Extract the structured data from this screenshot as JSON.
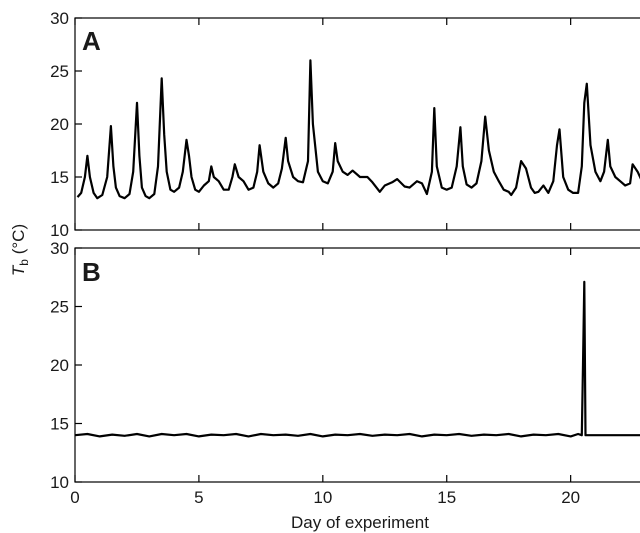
{
  "chart_data": [
    {
      "type": "line",
      "panel_label": "A",
      "ylabel_symbol": "T",
      "ylabel_subscript": "b",
      "ylabel_unit": " (°C)",
      "xlim": [
        0,
        23
      ],
      "ylim": [
        10,
        30
      ],
      "yticks": [
        10,
        15,
        20,
        25,
        30
      ],
      "xticks": [
        0,
        5,
        10,
        15,
        20
      ],
      "grid": false,
      "color": "#000000",
      "series": [
        {
          "x": [
            0.1,
            0.25,
            0.4,
            0.5,
            0.6,
            0.75,
            0.9,
            1.1,
            1.3,
            1.45,
            1.55,
            1.65,
            1.8,
            2.0,
            2.2,
            2.35,
            2.5,
            2.6,
            2.7,
            2.85,
            3.0,
            3.2,
            3.35,
            3.5,
            3.6,
            3.7,
            3.85,
            4.0,
            4.2,
            4.35,
            4.5,
            4.6,
            4.7,
            4.85,
            5.0,
            5.2,
            5.4,
            5.5,
            5.6,
            5.8,
            6.0,
            6.2,
            6.35,
            6.45,
            6.6,
            6.8,
            7.0,
            7.2,
            7.35,
            7.45,
            7.6,
            7.8,
            8.0,
            8.2,
            8.35,
            8.5,
            8.6,
            8.8,
            9.0,
            9.2,
            9.4,
            9.5,
            9.6,
            9.8,
            10.0,
            10.2,
            10.4,
            10.5,
            10.6,
            10.8,
            11.0,
            11.2,
            11.5,
            11.8,
            12.0,
            12.3,
            12.5,
            12.8,
            13.0,
            13.3,
            13.5,
            13.8,
            14.0,
            14.2,
            14.4,
            14.5,
            14.6,
            14.8,
            15.0,
            15.2,
            15.4,
            15.55,
            15.65,
            15.8,
            16.0,
            16.2,
            16.4,
            16.55,
            16.7,
            16.9,
            17.1,
            17.3,
            17.5,
            17.6,
            17.8,
            18.0,
            18.2,
            18.4,
            18.55,
            18.7,
            18.9,
            19.1,
            19.3,
            19.45,
            19.55,
            19.7,
            19.9,
            20.1,
            20.3,
            20.45,
            20.55,
            20.65,
            20.8,
            21.0,
            21.2,
            21.35,
            21.5,
            21.6,
            21.8,
            22.0,
            22.2,
            22.4,
            22.5,
            22.7,
            22.9,
            23.0
          ],
          "y": [
            13.1,
            13.5,
            15.0,
            17.0,
            15.0,
            13.5,
            13.0,
            13.3,
            15.0,
            19.8,
            16.0,
            14.0,
            13.2,
            13.0,
            13.4,
            15.5,
            22.0,
            17.0,
            14.0,
            13.2,
            13.0,
            13.4,
            16.0,
            24.3,
            19.0,
            15.5,
            13.8,
            13.6,
            14.0,
            15.5,
            18.5,
            17.0,
            15.0,
            13.8,
            13.6,
            14.2,
            14.6,
            16.0,
            15.0,
            14.6,
            13.8,
            13.8,
            15.0,
            16.2,
            15.0,
            14.6,
            13.8,
            14.0,
            15.5,
            18.0,
            15.5,
            14.4,
            14.0,
            14.4,
            15.8,
            18.7,
            16.5,
            15.0,
            14.6,
            14.5,
            16.5,
            26.0,
            20.0,
            15.5,
            14.6,
            14.4,
            15.5,
            18.2,
            16.5,
            15.5,
            15.2,
            15.6,
            15.0,
            15.0,
            14.5,
            13.6,
            14.2,
            14.5,
            14.8,
            14.1,
            14.0,
            14.6,
            14.4,
            13.4,
            15.5,
            21.5,
            16.0,
            14.0,
            13.8,
            14.0,
            16.0,
            19.7,
            16.0,
            14.3,
            14.0,
            14.4,
            16.5,
            20.7,
            17.5,
            15.5,
            14.6,
            13.8,
            13.6,
            13.3,
            14.0,
            16.5,
            15.8,
            14.0,
            13.5,
            13.6,
            14.2,
            13.5,
            14.6,
            18.0,
            19.5,
            15.0,
            13.8,
            13.5,
            13.5,
            16.0,
            22.0,
            23.8,
            18.0,
            15.5,
            14.6,
            15.5,
            18.5,
            16.0,
            15.0,
            14.6,
            14.2,
            14.4,
            16.2,
            15.5,
            14.5,
            14.2
          ]
        }
      ]
    },
    {
      "type": "line",
      "panel_label": "B",
      "xlabel": "Day of experiment",
      "xlim": [
        0,
        23
      ],
      "ylim": [
        10,
        30
      ],
      "yticks": [
        10,
        15,
        20,
        25,
        30
      ],
      "xticks": [
        0,
        5,
        10,
        15,
        20
      ],
      "grid": false,
      "color": "#000000",
      "series": [
        {
          "x": [
            0,
            0.5,
            1,
            1.5,
            2,
            2.5,
            3,
            3.5,
            4,
            4.5,
            5,
            5.5,
            6,
            6.5,
            7,
            7.5,
            8,
            8.5,
            9,
            9.5,
            10,
            10.5,
            11,
            11.5,
            12,
            12.5,
            13,
            13.5,
            14,
            14.5,
            15,
            15.5,
            16,
            16.5,
            17,
            17.5,
            18,
            18.5,
            19,
            19.5,
            20,
            20.3,
            20.45,
            20.5,
            20.55,
            20.6,
            20.65,
            20.7,
            21,
            21.5,
            22,
            22.5,
            23
          ],
          "y": [
            14.0,
            14.1,
            13.9,
            14.05,
            13.95,
            14.1,
            13.9,
            14.1,
            14.0,
            14.1,
            13.9,
            14.05,
            14.0,
            14.1,
            13.9,
            14.1,
            14.0,
            14.05,
            13.95,
            14.1,
            13.9,
            14.05,
            14.0,
            14.1,
            13.95,
            14.05,
            14.0,
            14.1,
            13.9,
            14.05,
            14.0,
            14.1,
            13.95,
            14.05,
            14.0,
            14.1,
            13.9,
            14.05,
            14.0,
            14.1,
            13.9,
            14.1,
            14.0,
            20.0,
            27.1,
            14.0,
            14.0,
            14.0,
            14.0,
            14.0,
            14.0,
            14.0,
            14.0
          ]
        }
      ]
    }
  ]
}
